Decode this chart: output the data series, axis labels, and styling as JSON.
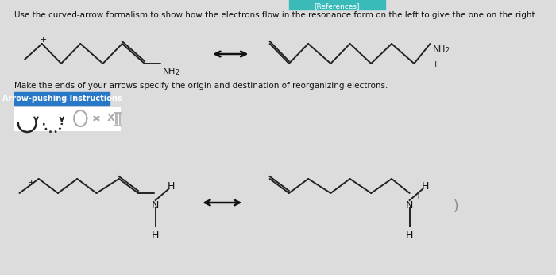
{
  "title_text": "Use the curved-arrow formalism to show how the electrons flow in the resonance form on the left to give the one on the right.",
  "ref_text": "[References]",
  "instruction_text": "Make the ends of your arrows specify the origin and destination of reorganizing electrons.",
  "button_text": "Arrow-pushing Instructions",
  "bg_color": "#dcdcdc",
  "button_color": "#2878c8",
  "button_text_color": "#ffffff",
  "text_color": "#111111",
  "arrow_color": "#111111",
  "ref_bar_color": "#3bbaba"
}
